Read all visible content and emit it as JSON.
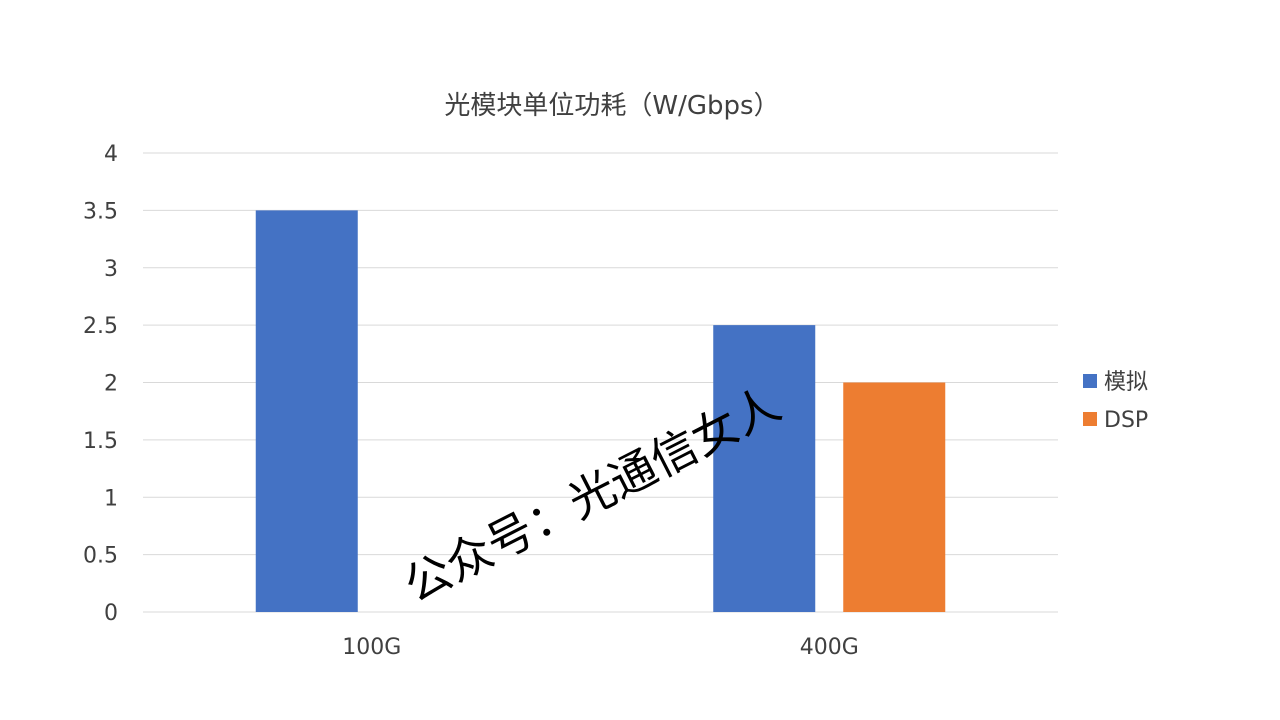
{
  "chart_data": {
    "type": "bar",
    "title": "光模块单位功耗（W/Gbps）",
    "categories": [
      "100G",
      "400G"
    ],
    "series": [
      {
        "name": "模拟",
        "color": "#4472C4",
        "values": [
          3.5,
          2.5
        ]
      },
      {
        "name": "DSP",
        "color": "#ED7D31",
        "values": [
          null,
          2
        ]
      }
    ],
    "ylim": [
      0,
      4
    ],
    "yticks": [
      "0",
      "0.5",
      "1",
      "1.5",
      "2",
      "2.5",
      "3",
      "3.5",
      "4"
    ],
    "grid": true,
    "gridline_color": "#D9D9D9",
    "legend_position": "right"
  },
  "watermark": "公众号：光通信女人"
}
